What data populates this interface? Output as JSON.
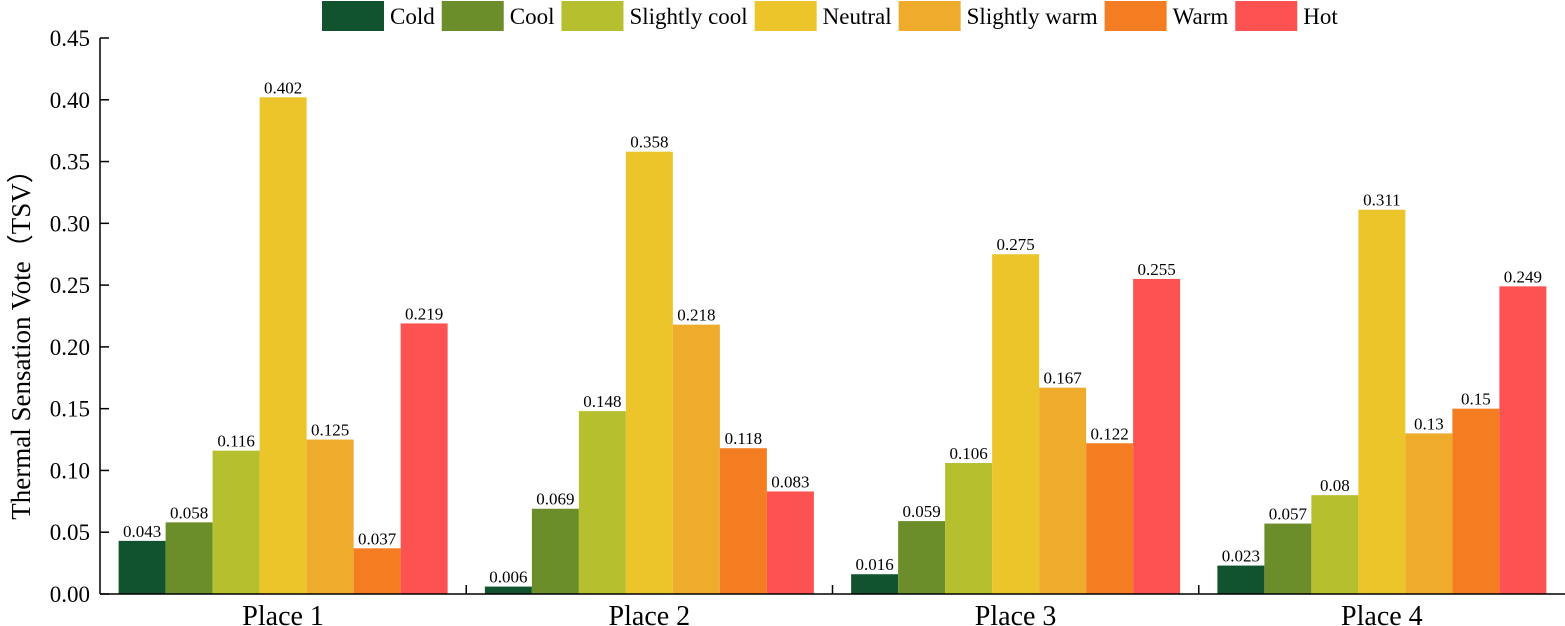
{
  "chart_data": {
    "type": "bar",
    "title": "",
    "xlabel": "",
    "ylabel": "Thermal Sensation Vote（TSV）",
    "ylim": [
      0,
      0.45
    ],
    "yticks": [
      "0.00",
      "0.05",
      "0.10",
      "0.15",
      "0.20",
      "0.25",
      "0.30",
      "0.35",
      "0.40",
      "0.45"
    ],
    "categories": [
      "Place 1",
      "Place 2",
      "Place 3",
      "Place 4"
    ],
    "legend_position": "top",
    "series": [
      {
        "name": "Cold",
        "color": "#10532e",
        "values": [
          0.043,
          0.006,
          0.016,
          0.023
        ],
        "labels": [
          "0.043",
          "0.006",
          "0.016",
          "0.023"
        ]
      },
      {
        "name": "Cool",
        "color": "#6b8e2b",
        "values": [
          0.058,
          0.069,
          0.059,
          0.057
        ],
        "labels": [
          "0.058",
          "0.069",
          "0.059",
          "0.057"
        ]
      },
      {
        "name": "Slightly cool",
        "color": "#b6bf2e",
        "values": [
          0.116,
          0.148,
          0.106,
          0.08
        ],
        "labels": [
          "0.116",
          "0.148",
          "0.106",
          "0.08"
        ]
      },
      {
        "name": "Neutral",
        "color": "#ecc52b",
        "values": [
          0.402,
          0.358,
          0.275,
          0.311
        ],
        "labels": [
          "0.402",
          "0.358",
          "0.275",
          "0.311"
        ]
      },
      {
        "name": "Slightly warm",
        "color": "#eeab2c",
        "values": [
          0.125,
          0.218,
          0.167,
          0.13
        ],
        "labels": [
          "0.125",
          "0.218",
          "0.167",
          "0.13"
        ]
      },
      {
        "name": "Warm",
        "color": "#f57d21",
        "values": [
          0.037,
          0.118,
          0.122,
          0.15
        ],
        "labels": [
          "0.037",
          "0.118",
          "0.122",
          "0.15"
        ]
      },
      {
        "name": "Hot",
        "color": "#fd5252",
        "values": [
          0.219,
          0.083,
          0.255,
          0.249
        ],
        "labels": [
          "0.219",
          "0.083",
          "0.255",
          "0.249"
        ]
      }
    ]
  }
}
